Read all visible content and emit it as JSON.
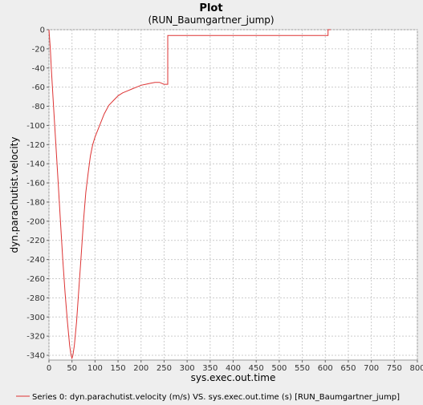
{
  "chart_data": {
    "type": "line",
    "title": "Plot",
    "subtitle": "(RUN_Baumgartner_jump)",
    "xlabel": "sys.exec.out.time",
    "ylabel": "dyn.parachutist.velocity",
    "xlim": [
      0,
      800
    ],
    "ylim": [
      -345,
      0
    ],
    "x_ticks": [
      0,
      50,
      100,
      150,
      200,
      250,
      300,
      350,
      400,
      450,
      500,
      550,
      600,
      650,
      700,
      750,
      800
    ],
    "y_ticks": [
      0,
      -20,
      -40,
      -60,
      -80,
      -100,
      -120,
      -140,
      -160,
      -180,
      -200,
      -220,
      -240,
      -260,
      -280,
      -300,
      -320,
      -340
    ],
    "grid": true,
    "legend_position": "bottom",
    "series": [
      {
        "name": "Series 0: dyn.parachutist.velocity (m/s) VS. sys.exec.out.time (s) [RUN_Baumgartner_jump]",
        "color": "#dd3333",
        "x": [
          0,
          3,
          5,
          10,
          15,
          20,
          25,
          30,
          35,
          40,
          45,
          48,
          50,
          52,
          55,
          60,
          65,
          70,
          75,
          80,
          85,
          90,
          95,
          100,
          110,
          120,
          130,
          140,
          150,
          160,
          170,
          180,
          190,
          200,
          210,
          220,
          230,
          240,
          250,
          258,
          258,
          260,
          300,
          400,
          500,
          600,
          606,
          606,
          612
        ],
        "y": [
          0,
          -20,
          -40,
          -80,
          -120,
          -160,
          -200,
          -240,
          -275,
          -305,
          -330,
          -340,
          -343,
          -340,
          -330,
          -305,
          -270,
          -235,
          -200,
          -170,
          -150,
          -132,
          -120,
          -112,
          -100,
          -88,
          -79,
          -74,
          -69,
          -66,
          -64,
          -62,
          -60,
          -58,
          -57,
          -56,
          -55,
          -55,
          -57,
          -57,
          -6,
          -6,
          -6,
          -6,
          -6,
          -6,
          -6,
          0,
          0
        ]
      }
    ]
  }
}
